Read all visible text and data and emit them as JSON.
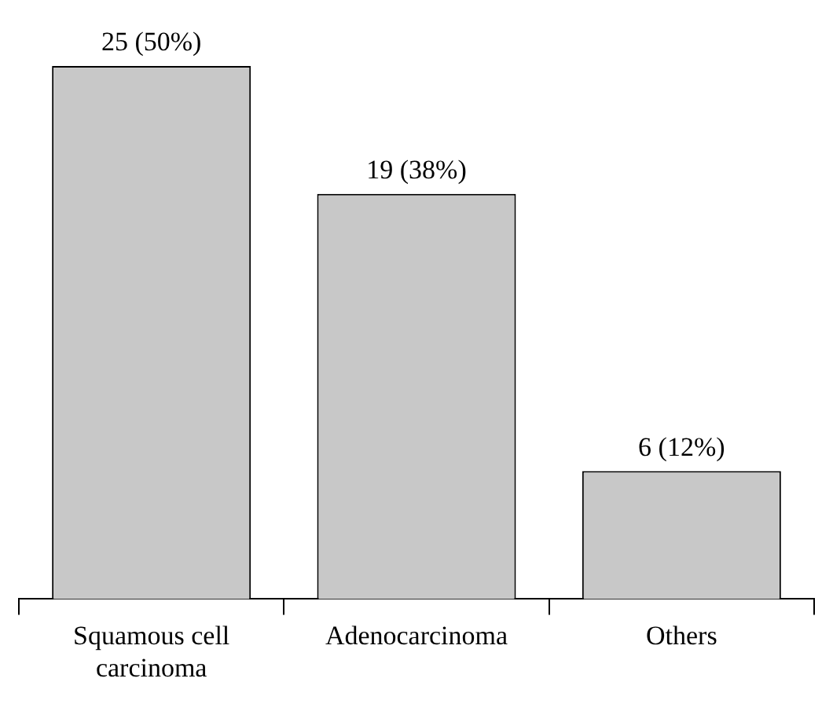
{
  "chart_data": {
    "type": "bar",
    "categories": [
      "Squamous cell carcinoma",
      "Adenocarcinoma",
      "Others"
    ],
    "values": [
      25,
      19,
      6
    ],
    "value_labels": [
      "25 (50%)",
      "19 (38%)",
      "6 (12%)"
    ],
    "color": "#c8c8c8",
    "grid": false,
    "legend": false
  }
}
